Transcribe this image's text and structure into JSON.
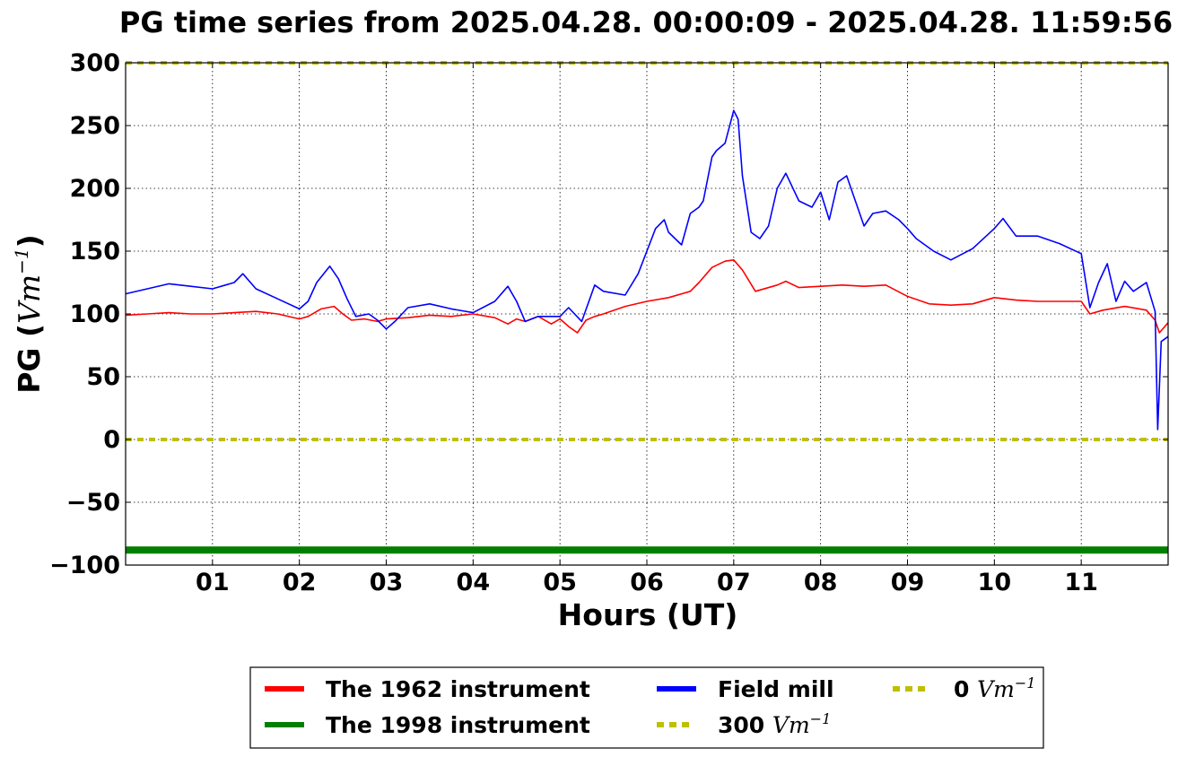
{
  "chart_data": {
    "type": "line",
    "title": "PG time series from 2025.04.28. 00:00:09 - 2025.04.28. 11:59:56",
    "xlabel": "Hours (UT)",
    "ylabel": "PG (",
    "ylabel_unit": "Vm",
    "ylabel_exp": "−1",
    "ylabel_close": ")",
    "xlim": [
      0,
      12
    ],
    "ylim": [
      -100,
      300
    ],
    "grid": true,
    "legend_position": "below",
    "x_ticks": [
      {
        "value": 1,
        "label": "01"
      },
      {
        "value": 2,
        "label": "02"
      },
      {
        "value": 3,
        "label": "03"
      },
      {
        "value": 4,
        "label": "04"
      },
      {
        "value": 5,
        "label": "05"
      },
      {
        "value": 6,
        "label": "06"
      },
      {
        "value": 7,
        "label": "07"
      },
      {
        "value": 8,
        "label": "08"
      },
      {
        "value": 9,
        "label": "09"
      },
      {
        "value": 10,
        "label": "10"
      },
      {
        "value": 11,
        "label": "11"
      }
    ],
    "y_ticks": [
      {
        "value": 300,
        "label": "300"
      },
      {
        "value": 250,
        "label": "250"
      },
      {
        "value": 200,
        "label": "200"
      },
      {
        "value": 150,
        "label": "150"
      },
      {
        "value": 100,
        "label": "100"
      },
      {
        "value": 50,
        "label": "50"
      },
      {
        "value": 0,
        "label": "0"
      },
      {
        "value": -50,
        "label": "−50"
      },
      {
        "value": -100,
        "label": "−100"
      }
    ],
    "series": [
      {
        "name": "The 1962 instrument",
        "color": "#ff0000",
        "x": [
          0,
          0.25,
          0.5,
          0.75,
          1.0,
          1.25,
          1.5,
          1.75,
          2.0,
          2.1,
          2.25,
          2.4,
          2.5,
          2.6,
          2.75,
          2.9,
          3.0,
          3.25,
          3.5,
          3.75,
          4.0,
          4.25,
          4.4,
          4.5,
          4.6,
          4.75,
          4.9,
          5.0,
          5.1,
          5.2,
          5.3,
          5.4,
          5.5,
          5.75,
          6.0,
          6.25,
          6.5,
          6.6,
          6.75,
          6.9,
          7.0,
          7.1,
          7.25,
          7.5,
          7.6,
          7.75,
          8.0,
          8.25,
          8.5,
          8.75,
          9.0,
          9.25,
          9.5,
          9.75,
          10.0,
          10.25,
          10.5,
          10.75,
          11.0,
          11.1,
          11.25,
          11.5,
          11.75,
          11.85,
          11.9,
          12.0
        ],
        "y": [
          99,
          100,
          101,
          100,
          100,
          101,
          102,
          100,
          96,
          98,
          104,
          106,
          100,
          95,
          96,
          94,
          96,
          97,
          99,
          98,
          100,
          97,
          92,
          96,
          94,
          98,
          92,
          96,
          90,
          85,
          95,
          98,
          100,
          106,
          110,
          113,
          118,
          125,
          137,
          142,
          143,
          135,
          118,
          123,
          126,
          121,
          122,
          123,
          122,
          123,
          114,
          108,
          107,
          108,
          113,
          111,
          110,
          110,
          110,
          100,
          103,
          106,
          103,
          95,
          85,
          93
        ]
      },
      {
        "name": "The 1998 instrument",
        "color": "#007f00",
        "x": [
          0,
          12
        ],
        "y": [
          -88,
          -88
        ]
      },
      {
        "name": "Field mill",
        "color": "#0000ff",
        "x": [
          0,
          0.25,
          0.5,
          0.75,
          1.0,
          1.25,
          1.35,
          1.5,
          1.75,
          2.0,
          2.1,
          2.2,
          2.35,
          2.45,
          2.55,
          2.65,
          2.8,
          2.9,
          3.0,
          3.1,
          3.25,
          3.5,
          3.75,
          4.0,
          4.25,
          4.4,
          4.5,
          4.6,
          4.75,
          5.0,
          5.1,
          5.25,
          5.4,
          5.5,
          5.75,
          5.9,
          6.0,
          6.1,
          6.2,
          6.25,
          6.4,
          6.5,
          6.6,
          6.65,
          6.75,
          6.8,
          6.9,
          7.0,
          7.05,
          7.1,
          7.2,
          7.3,
          7.4,
          7.5,
          7.6,
          7.75,
          7.9,
          8.0,
          8.1,
          8.2,
          8.3,
          8.4,
          8.5,
          8.6,
          8.75,
          8.9,
          9.0,
          9.1,
          9.2,
          9.3,
          9.5,
          9.75,
          10.0,
          10.1,
          10.25,
          10.5,
          10.75,
          11.0,
          11.1,
          11.2,
          11.3,
          11.4,
          11.5,
          11.6,
          11.75,
          11.85,
          11.88,
          11.92,
          12.0
        ],
        "y": [
          116,
          120,
          124,
          122,
          120,
          125,
          132,
          120,
          112,
          104,
          110,
          125,
          138,
          128,
          112,
          98,
          100,
          95,
          88,
          94,
          105,
          108,
          104,
          101,
          110,
          122,
          110,
          94,
          98,
          98,
          105,
          94,
          123,
          118,
          115,
          132,
          150,
          168,
          175,
          165,
          155,
          180,
          185,
          190,
          225,
          230,
          236,
          262,
          255,
          210,
          165,
          160,
          170,
          200,
          212,
          190,
          185,
          197,
          175,
          205,
          210,
          190,
          170,
          180,
          182,
          175,
          168,
          160,
          155,
          150,
          143,
          152,
          168,
          176,
          162,
          162,
          156,
          148,
          105,
          125,
          140,
          110,
          126,
          118,
          125,
          102,
          8,
          78,
          82
        ]
      },
      {
        "name": "300 Vm−1",
        "color": "#bfbf00",
        "dashed": true,
        "x": [
          0,
          12
        ],
        "y": [
          300,
          300
        ]
      },
      {
        "name": "0 Vm−1",
        "color": "#bfbf00",
        "dashed": true,
        "x": [
          0,
          12
        ],
        "y": [
          0,
          0
        ]
      }
    ],
    "legend": [
      {
        "series": 0,
        "text": "The 1962 instrument",
        "math": "",
        "exp": ""
      },
      {
        "series": 1,
        "text": "The 1998 instrument",
        "math": "",
        "exp": ""
      },
      {
        "series": 2,
        "text": "Field mill",
        "math": "",
        "exp": ""
      },
      {
        "series": 3,
        "text": "300 ",
        "math": "Vm",
        "exp": "−1"
      },
      {
        "series": 4,
        "text": "0 ",
        "math": "Vm",
        "exp": "−1"
      }
    ]
  }
}
